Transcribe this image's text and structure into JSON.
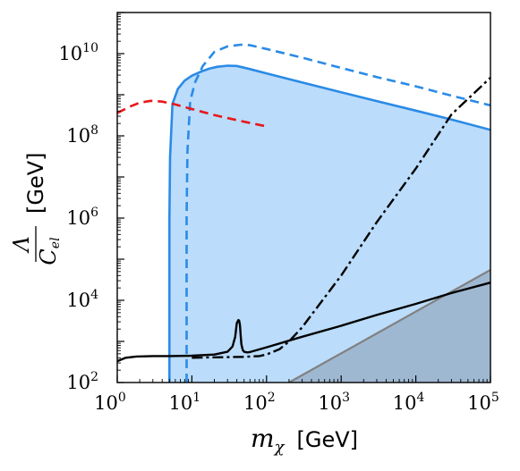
{
  "chart_data": {
    "type": "line",
    "xscale": "log",
    "yscale": "log",
    "xlim": [
      1,
      100000
    ],
    "ylim": [
      100,
      100000000000
    ],
    "grid": false,
    "legend": "none",
    "xlabel": {
      "symbol": "m",
      "subscript": "χ",
      "unit": "[GeV]"
    },
    "ylabel": {
      "numerator": "Λ",
      "denominator": "C",
      "denominator_sub": "el",
      "unit": "[GeV]"
    },
    "xticks": [
      {
        "base": "10",
        "exp": "0",
        "value": 1
      },
      {
        "base": "10",
        "exp": "1",
        "value": 10
      },
      {
        "base": "10",
        "exp": "2",
        "value": 100
      },
      {
        "base": "10",
        "exp": "3",
        "value": 1000
      },
      {
        "base": "10",
        "exp": "4",
        "value": 10000
      },
      {
        "base": "10",
        "exp": "5",
        "value": 100000
      }
    ],
    "yticks": [
      {
        "base": "10",
        "exp": "2",
        "value": 100
      },
      {
        "base": "10",
        "exp": "4",
        "value": 10000
      },
      {
        "base": "10",
        "exp": "6",
        "value": 1000000
      },
      {
        "base": "10",
        "exp": "8",
        "value": 100000000
      },
      {
        "base": "10",
        "exp": "10",
        "value": 10000000000
      }
    ],
    "colors": {
      "blue_fill": "#bbdcfa",
      "blue_line": "#2a8be6",
      "red_line": "#e8171b",
      "black_line": "#000000",
      "grey_fill": "#9fb8d2",
      "grey_line": "#808080"
    },
    "series": [
      {
        "style": "solid-blue-filled",
        "x": [
          5.0,
          5.0,
          5.1,
          5.5,
          6.5,
          8,
          10,
          13,
          17,
          22,
          30,
          40,
          60,
          100,
          300,
          1000,
          3000,
          10000,
          30000,
          100000
        ],
        "y": [
          100,
          1000000,
          30000000,
          600000000,
          1400000000,
          2200000000,
          2900000000,
          3600000000,
          4300000000,
          4800000000,
          5100000000,
          5000000000,
          4200000000,
          3300000000,
          2000000000,
          1150000000,
          700000000,
          410000000,
          250000000,
          140000000
        ]
      },
      {
        "style": "dashed-blue",
        "x": [
          8.5,
          8.5,
          8.7,
          9.5,
          11,
          14,
          20,
          30,
          45,
          60,
          100,
          300,
          1000,
          3000,
          10000,
          30000,
          100000
        ],
        "y": [
          100,
          1000000,
          40000000,
          700000000,
          2000000000,
          5000000000,
          11000000000,
          15000000000,
          16500000000,
          16000000000,
          13000000000,
          8000000000,
          4500000000,
          2700000000,
          1600000000,
          950000000,
          550000000
        ]
      },
      {
        "style": "dashed-red",
        "x": [
          1,
          1.5,
          2,
          2.8,
          4,
          6,
          10,
          20,
          50,
          100
        ],
        "y": [
          360000000,
          520000000,
          640000000,
          710000000,
          680000000,
          580000000,
          450000000,
          320000000,
          220000000,
          170000000
        ]
      },
      {
        "style": "solid-black",
        "x": [
          1,
          1.3,
          1.8,
          3,
          5,
          10,
          20,
          30,
          35,
          38,
          40,
          42,
          43,
          44,
          45,
          46,
          48,
          50,
          55,
          60,
          100,
          300,
          1000,
          3000,
          10000,
          30000,
          100000
        ],
        "y": [
          330,
          400,
          430,
          440,
          440,
          450,
          480,
          560,
          750,
          1300,
          2800,
          3300,
          3200,
          2500,
          1400,
          850,
          620,
          560,
          540,
          550,
          720,
          1300,
          2400,
          4400,
          8200,
          15000,
          27000
        ]
      },
      {
        "style": "dashdot-black",
        "x": [
          10,
          20,
          50,
          80,
          100,
          150,
          200,
          300,
          1000,
          3000,
          10000,
          30000,
          100000
        ],
        "y": [
          400,
          410,
          420,
          440,
          480,
          650,
          1000,
          2200,
          40000,
          800000,
          16000000,
          330000000,
          2600000000
        ]
      },
      {
        "style": "grey-excluded-region",
        "x": [
          200,
          100000
        ],
        "y": [
          100,
          55000
        ]
      }
    ]
  }
}
